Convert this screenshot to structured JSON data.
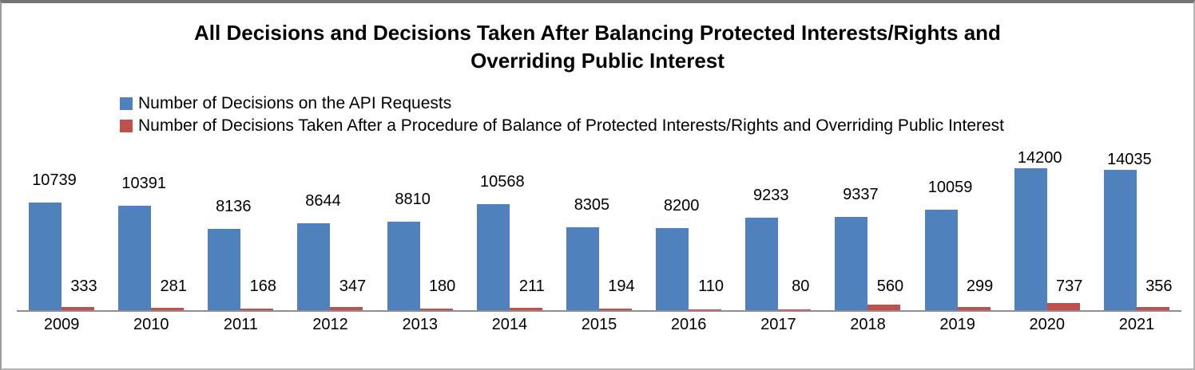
{
  "chart_data": {
    "type": "bar",
    "title": "All Decisions and Decisions Taken After Balancing Protected Interests/Rights and Overriding Public Interest",
    "title_lines": [
      "All Decisions and Decisions Taken After Balancing Protected Interests/Rights and",
      "Overriding Public Interest"
    ],
    "categories": [
      "2009",
      "2010",
      "2011",
      "2012",
      "2013",
      "2014",
      "2015",
      "2016",
      "2017",
      "2018",
      "2019",
      "2020",
      "2021"
    ],
    "series": [
      {
        "name": "Number of Decisions on the API Requests",
        "color": "#4F81BD",
        "values": [
          10739,
          10391,
          8136,
          8644,
          8810,
          10568,
          8305,
          8200,
          9233,
          9337,
          10059,
          14200,
          14035
        ]
      },
      {
        "name": "Number of Decisions Taken After a Procedure of Balance of Protected Interests/Rights and Overriding Public Interest",
        "color": "#C0504D",
        "values": [
          333,
          281,
          168,
          347,
          180,
          211,
          194,
          110,
          80,
          560,
          299,
          737,
          356
        ]
      }
    ],
    "xlabel": "",
    "ylabel": "",
    "ylim": [
      0,
      15000
    ],
    "grid": false,
    "y_axis_visible": false,
    "legend_position": "top-left",
    "data_labels": true,
    "axis_line_color": "#8e8e8e",
    "text_color": "#000000"
  }
}
